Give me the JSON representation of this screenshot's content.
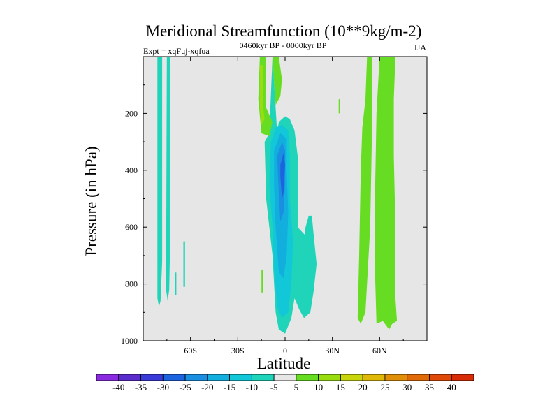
{
  "chart_data": {
    "type": "contour",
    "title": "Meridional Streamfunction (10**9kg/m-2)",
    "subtitle_left": "Expt = xqFuj-xqfua",
    "subtitle_center": "0460kyr BP - 0000kyr BP",
    "subtitle_right": "JJA",
    "xlabel": "Latitude",
    "ylabel": "Pressure (in hPa)",
    "xlim": [
      -90,
      90
    ],
    "ylim": [
      1000,
      0
    ],
    "x_ticks": [
      {
        "value": -60,
        "label": "60S"
      },
      {
        "value": -30,
        "label": "30S"
      },
      {
        "value": 0,
        "label": "0"
      },
      {
        "value": 30,
        "label": "30N"
      },
      {
        "value": 60,
        "label": "60N"
      }
    ],
    "y_ticks": [
      {
        "value": 200,
        "label": "200"
      },
      {
        "value": 400,
        "label": "400"
      },
      {
        "value": 600,
        "label": "600"
      },
      {
        "value": 800,
        "label": "800"
      },
      {
        "value": 1000,
        "label": "1000"
      }
    ],
    "background_color": "#e6e6e6",
    "colorbar": {
      "bounds": [
        -45,
        -40,
        -35,
        -30,
        -25,
        -20,
        -15,
        -10,
        -5,
        5,
        10,
        15,
        20,
        25,
        30,
        35,
        40,
        45
      ],
      "labels": [
        "-40",
        "-35",
        "-30",
        "-25",
        "-20",
        "-15",
        "-10",
        "-5",
        "5",
        "10",
        "15",
        "20",
        "25",
        "30",
        "35",
        "40"
      ],
      "colors": [
        "#8a2be2",
        "#5a2ccc",
        "#3a3ad8",
        "#1d63e0",
        "#1a8ee0",
        "#12aede",
        "#12c8d8",
        "#1fd4b8",
        "#e6e6e6",
        "#66dd22",
        "#99dd11",
        "#c8d40c",
        "#e0b808",
        "#e09008",
        "#e06a08",
        "#e04a08",
        "#d82c08"
      ]
    },
    "features": [
      {
        "name": "anomaly-60s-band-a",
        "level": -7.5,
        "points": [
          [
            -81,
            0
          ],
          [
            -78,
            0
          ],
          [
            -78,
            720
          ],
          [
            -79,
            860
          ],
          [
            -80,
            880
          ],
          [
            -81,
            850
          ],
          [
            -81,
            0
          ]
        ]
      },
      {
        "name": "anomaly-60s-band-b",
        "level": -7.5,
        "points": [
          [
            -75,
            0
          ],
          [
            -73,
            0
          ],
          [
            -73,
            680
          ],
          [
            -73.5,
            820
          ],
          [
            -74.5,
            860
          ],
          [
            -75.5,
            820
          ],
          [
            -75,
            0
          ]
        ]
      },
      {
        "name": "anomaly-60s-band-c",
        "level": -7.5,
        "points": [
          [
            -70,
            760
          ],
          [
            -69,
            760
          ],
          [
            -69,
            840
          ],
          [
            -70,
            840
          ],
          [
            -70,
            760
          ]
        ]
      },
      {
        "name": "anomaly-60s-band-d",
        "level": -7.5,
        "points": [
          [
            -64.5,
            650
          ],
          [
            -63.5,
            650
          ],
          [
            -63.5,
            810
          ],
          [
            -64.5,
            810
          ],
          [
            -64.5,
            650
          ]
        ]
      },
      {
        "name": "anomaly-equatorial-cell",
        "level": -7.5,
        "points": [
          [
            -8,
            0
          ],
          [
            -5,
            270
          ],
          [
            -4,
            230
          ],
          [
            0,
            210
          ],
          [
            3,
            220
          ],
          [
            6,
            260
          ],
          [
            8,
            350
          ],
          [
            8,
            600
          ],
          [
            13,
            630
          ],
          [
            17,
            650
          ],
          [
            20,
            730
          ],
          [
            18,
            830
          ],
          [
            16,
            900
          ],
          [
            12,
            920
          ],
          [
            9,
            890
          ],
          [
            6,
            850
          ],
          [
            4,
            920
          ],
          [
            0,
            975
          ],
          [
            -4,
            960
          ],
          [
            -6,
            900
          ],
          [
            -8,
            700
          ],
          [
            -12,
            500
          ],
          [
            -13,
            300
          ],
          [
            -10,
            270
          ],
          [
            -8,
            0
          ]
        ]
      },
      {
        "name": "anomaly-equatorial-core-1",
        "level": -12.5,
        "points": [
          [
            -9,
            300
          ],
          [
            -6,
            250
          ],
          [
            -2,
            240
          ],
          [
            2,
            260
          ],
          [
            3,
            350
          ],
          [
            3,
            500
          ],
          [
            5,
            650
          ],
          [
            4,
            800
          ],
          [
            2,
            900
          ],
          [
            -2,
            920
          ],
          [
            -5,
            880
          ],
          [
            -7,
            750
          ],
          [
            -8,
            600
          ],
          [
            -10,
            450
          ],
          [
            -9,
            300
          ]
        ]
      },
      {
        "name": "anomaly-equatorial-core-2",
        "level": -17.5,
        "points": [
          [
            -7,
            330
          ],
          [
            -3,
            270
          ],
          [
            1,
            290
          ],
          [
            1,
            400
          ],
          [
            2,
            550
          ],
          [
            1,
            700
          ],
          [
            -1,
            780
          ],
          [
            -4,
            760
          ],
          [
            -6,
            600
          ],
          [
            -7,
            450
          ],
          [
            -7,
            330
          ]
        ]
      },
      {
        "name": "anomaly-equatorial-core-3",
        "level": -22.5,
        "points": [
          [
            -5,
            350
          ],
          [
            -2,
            300
          ],
          [
            0,
            330
          ],
          [
            0,
            450
          ],
          [
            -1,
            550
          ],
          [
            -3,
            580
          ],
          [
            -4,
            480
          ],
          [
            -5,
            350
          ]
        ]
      },
      {
        "name": "anomaly-equatorial-core-4",
        "level": -27.5,
        "points": [
          [
            -3,
            380
          ],
          [
            -1,
            340
          ],
          [
            0,
            380
          ],
          [
            -1,
            480
          ],
          [
            -2,
            500
          ],
          [
            -3,
            420
          ],
          [
            -3,
            380
          ]
        ]
      },
      {
        "name": "anomaly-equatorial-side",
        "level": -7.5,
        "points": [
          [
            8,
            600
          ],
          [
            12,
            640
          ],
          [
            13,
            600
          ],
          [
            15,
            560
          ],
          [
            17,
            560
          ],
          [
            18,
            620
          ],
          [
            20,
            730
          ],
          [
            16,
            820
          ],
          [
            12,
            780
          ],
          [
            10,
            700
          ],
          [
            8,
            600
          ]
        ]
      },
      {
        "name": "anomaly-north-upper",
        "level": 7.5,
        "points": [
          [
            -16,
            0
          ],
          [
            -12,
            0
          ],
          [
            -12,
            180
          ],
          [
            -8,
            230
          ],
          [
            -10,
            280
          ],
          [
            -15,
            270
          ],
          [
            -17,
            150
          ],
          [
            -16,
            0
          ]
        ]
      },
      {
        "name": "anomaly-north-upper-b",
        "level": 7.5,
        "points": [
          [
            -8,
            0
          ],
          [
            -4,
            0
          ],
          [
            -2,
            80
          ],
          [
            -3,
            140
          ],
          [
            -6,
            170
          ],
          [
            -7,
            90
          ],
          [
            -8,
            0
          ]
        ]
      },
      {
        "name": "anomaly-north-upper-c",
        "level": 12.5,
        "points": [
          [
            -16,
            30
          ],
          [
            -14,
            30
          ],
          [
            -14,
            170
          ],
          [
            -13,
            220
          ],
          [
            -15,
            240
          ],
          [
            -16,
            180
          ],
          [
            -16,
            30
          ]
        ]
      },
      {
        "name": "anomaly-60n-band-a",
        "level": 7.5,
        "points": [
          [
            52,
            0
          ],
          [
            55,
            0
          ],
          [
            55,
            150
          ],
          [
            55,
            300
          ],
          [
            54,
            600
          ],
          [
            51,
            900
          ],
          [
            48,
            940
          ],
          [
            46,
            920
          ],
          [
            47,
            700
          ],
          [
            48,
            400
          ],
          [
            49,
            250
          ],
          [
            51,
            150
          ],
          [
            52,
            0
          ]
        ]
      },
      {
        "name": "anomaly-60n-band-b",
        "level": 7.5,
        "points": [
          [
            60,
            0
          ],
          [
            70,
            0
          ],
          [
            69,
            150
          ],
          [
            69,
            350
          ],
          [
            70,
            600
          ],
          [
            70,
            850
          ],
          [
            71,
            930
          ],
          [
            68,
            940
          ],
          [
            66,
            960
          ],
          [
            62,
            930
          ],
          [
            58,
            940
          ],
          [
            57,
            750
          ],
          [
            57,
            500
          ],
          [
            58,
            200
          ],
          [
            60,
            0
          ]
        ]
      },
      {
        "name": "anomaly-small-cell",
        "level": 7.5,
        "points": [
          [
            34,
            150
          ],
          [
            35,
            150
          ],
          [
            35,
            200
          ],
          [
            34,
            200
          ],
          [
            34,
            150
          ]
        ]
      },
      {
        "name": "anomaly-small-cell-b",
        "level": 7.5,
        "points": [
          [
            -15,
            750
          ],
          [
            -14,
            750
          ],
          [
            -14,
            830
          ],
          [
            -15,
            830
          ],
          [
            -15,
            750
          ]
        ]
      }
    ]
  }
}
